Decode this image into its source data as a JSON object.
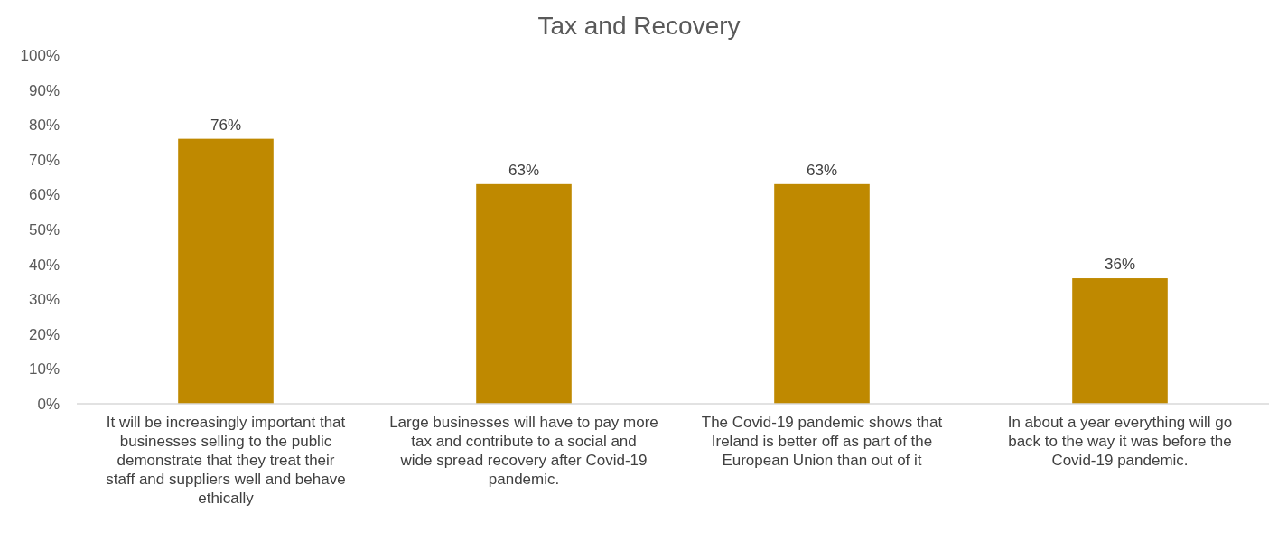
{
  "chart_data": {
    "type": "bar",
    "title": "Tax and Recovery",
    "categories": [
      "It will be increasingly important that businesses selling to the public demonstrate that they treat their staff and suppliers well and behave ethically",
      "Large businesses will have to pay more tax and contribute to a social and wide spread recovery after Covid-19 pandemic.",
      "The Covid-19 pandemic shows that Ireland is better off as part of the European Union than out of it",
      "In about a year everything will go back to the way it was before the Covid-19 pandemic."
    ],
    "values": [
      76,
      63,
      63,
      36
    ],
    "value_labels": [
      "76%",
      "63%",
      "63%",
      "36%"
    ],
    "color": "#bf8900",
    "ylim": [
      0,
      100
    ],
    "yticks": [
      {
        "value": 0,
        "label": "0%"
      },
      {
        "value": 10,
        "label": "10%"
      },
      {
        "value": 20,
        "label": "20%"
      },
      {
        "value": 30,
        "label": "30%"
      },
      {
        "value": 40,
        "label": "40%"
      },
      {
        "value": 50,
        "label": "50%"
      },
      {
        "value": 60,
        "label": "60%"
      },
      {
        "value": 70,
        "label": "70%"
      },
      {
        "value": 80,
        "label": "80%"
      },
      {
        "value": 90,
        "label": "90%"
      },
      {
        "value": 100,
        "label": "100%"
      }
    ]
  }
}
